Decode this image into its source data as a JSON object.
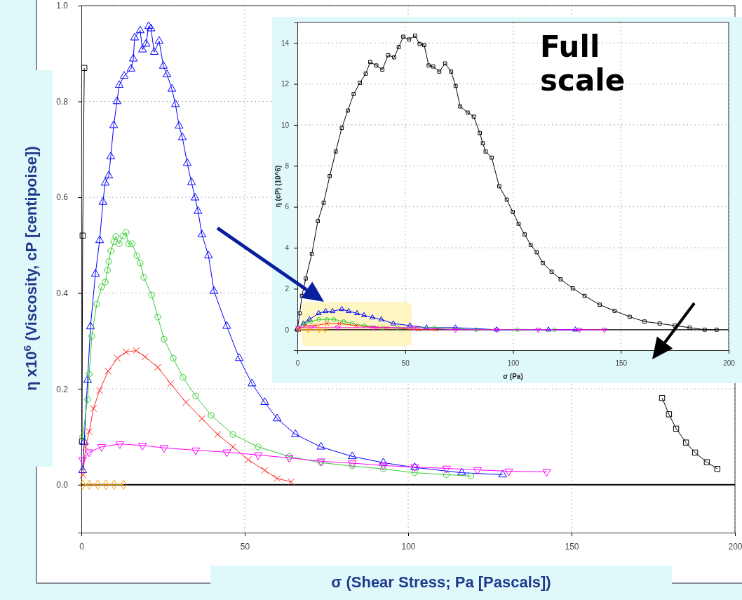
{
  "chart_data": [
    {
      "type": "line",
      "xlabel": "σ (Shear Stress; Pa [Pascals])",
      "ylabel": "η x10$^{6}$ (Viscosity, cP [centipoise])",
      "xlim": [
        0,
        200
      ],
      "ylim": [
        -0.1,
        1.0
      ],
      "xticks": [
        0,
        50,
        100,
        150,
        200
      ],
      "yticks": [
        {
          "value": 0,
          "label": "0.0"
        },
        {
          "value": 0.2,
          "label": "0.2"
        },
        {
          "value": 0.4,
          "label": "0.4"
        },
        {
          "value": 0.6,
          "label": "0.6"
        },
        {
          "value": 0.8,
          "label": "0.8"
        },
        {
          "value": 1,
          "label": "1.0"
        }
      ],
      "grid": true,
      "line_style": "solid",
      "ref_lines": [
        {
          "axis": "y",
          "value": 0,
          "color": "#000000"
        }
      ],
      "series": [
        {
          "color": "#000000",
          "marker": "square",
          "x": [
            0.2,
            0.4,
            0.9,
            2,
            177.7,
            179.8,
            182,
            185,
            187.8,
            191.4,
            194.6
          ],
          "values": [
            0.09,
            0.52,
            0.87,
            null,
            0.181,
            0.147,
            0.117,
            0.088,
            0.067,
            0.047,
            0.033
          ]
        },
        {
          "color": "#0000ff",
          "marker": "triangle",
          "x": [
            0.4,
            0.86,
            1.9,
            2.8,
            4.3,
            5.6,
            6.6,
            7.3,
            8.4,
            9.0,
            9.9,
            10.9,
            11.6,
            13.1,
            15.2,
            15.9,
            16.3,
            18,
            18.7,
            19.8,
            20.6,
            21.3,
            22.3,
            23.8,
            25.1,
            26.2,
            27.7,
            28.8,
            29.9,
            30.9,
            32.4,
            33.7,
            34.8,
            35.7,
            36.9,
            38.9,
            40.6,
            44.5,
            48.3,
            52.2,
            56.1,
            59.9,
            65.5,
            73.3,
            82.9,
            92.4,
            102,
            116.4,
            128.9
          ],
          "values": [
            0.03,
            0.089,
            0.218,
            0.33,
            0.44,
            0.51,
            0.59,
            0.63,
            0.645,
            0.685,
            0.75,
            0.8,
            0.834,
            0.853,
            0.868,
            0.889,
            0.933,
            0.948,
            0.908,
            0.92,
            0.957,
            0.952,
            0.903,
            0.926,
            0.874,
            0.856,
            0.826,
            0.794,
            0.749,
            0.725,
            0.671,
            0.631,
            0.599,
            0.571,
            0.522,
            0.478,
            0.404,
            0.331,
            0.264,
            0.211,
            0.172,
            0.138,
            0.105,
            0.079,
            0.059,
            0.046,
            0.036,
            0.025,
            0.021
          ]
        },
        {
          "color": "#33cc33",
          "marker": "circle",
          "x": [
            0.4,
            1.9,
            2.4,
            3.2,
            4.7,
            6.2,
            7.3,
            8,
            8.4,
            9,
            9.9,
            10.5,
            11.6,
            12.7,
            13.7,
            14.4,
            15.5,
            17,
            18,
            19.1,
            21.5,
            23.4,
            25.3,
            28.1,
            31.1,
            35,
            39.7,
            46.4,
            54.1,
            63.6,
            73.3,
            82.9,
            92.4,
            102,
            111.7,
            119.2
          ],
          "values": [
            0.1,
            0.178,
            0.231,
            0.31,
            0.377,
            0.413,
            0.423,
            0.448,
            0.466,
            0.488,
            0.507,
            0.518,
            0.503,
            0.519,
            0.527,
            0.503,
            0.503,
            0.478,
            0.463,
            0.433,
            0.396,
            0.35,
            0.304,
            0.264,
            0.224,
            0.185,
            0.145,
            0.105,
            0.079,
            0.059,
            0.046,
            0.039,
            0.033,
            0.025,
            0.021,
            0.018
          ]
        },
        {
          "color": "#ff2222",
          "marker": "cross",
          "x": [
            0.5,
            1.3,
            2.4,
            3.7,
            5.6,
            8.2,
            11,
            13.7,
            16.8,
            19.5,
            23.4,
            27.3,
            32,
            36.9,
            41.7,
            46.4,
            51.1,
            56.1,
            59.9,
            64.2
          ],
          "values": [
            0.02,
            0.079,
            0.111,
            0.159,
            0.197,
            0.237,
            0.264,
            0.277,
            0.28,
            0.267,
            0.245,
            0.211,
            0.172,
            0.138,
            0.105,
            0.079,
            0.052,
            0.03,
            0.013,
            0.006
          ]
        },
        {
          "color": "#ff00ff",
          "marker": "triangle-down",
          "x": [
            0.4,
            2.4,
            6.2,
            11.8,
            18.7,
            25.3,
            35,
            44.5,
            54.1,
            63.6,
            73.3,
            82.9,
            92.4,
            102,
            111.7,
            121.2,
            130.8,
            142.4
          ],
          "values": [
            0.052,
            0.068,
            0.079,
            0.085,
            0.082,
            0.077,
            0.072,
            0.068,
            0.062,
            0.056,
            0.049,
            0.045,
            0.04,
            0.037,
            0.034,
            0.031,
            0.028,
            0.027
          ]
        },
        {
          "color": "#ffa500",
          "marker": "diamond",
          "x": [
            0.4,
            2.5,
            5,
            7.5,
            10,
            12.9
          ],
          "values": [
            0,
            0,
            0,
            0,
            0,
            0
          ]
        }
      ]
    },
    {
      "type": "line",
      "xlabel": "σ (Pa)",
      "ylabel": "η (cP) (10^6)",
      "xlim": [
        0,
        200
      ],
      "ylim": [
        -1,
        15
      ],
      "xticks": [
        0,
        50,
        100,
        150,
        200
      ],
      "yticks": [
        0,
        2,
        4,
        6,
        8,
        10,
        12,
        14
      ],
      "grid": true,
      "line_style": "solid",
      "ref_lines": [
        {
          "axis": "y",
          "value": 0,
          "color": "#000000"
        }
      ],
      "annotations": [
        "Full scale"
      ],
      "series": [
        {
          "color": "#000000",
          "marker": "square",
          "x": [
            0,
            1.1,
            2.1,
            3.9,
            6.7,
            9.5,
            12.2,
            15,
            17.8,
            20.6,
            23.4,
            26.1,
            29,
            31.7,
            33.8,
            36.6,
            39.4,
            42.1,
            44.9,
            47,
            49.1,
            51.8,
            54.6,
            56.7,
            58.8,
            60.9,
            63,
            65.8,
            68.5,
            71.3,
            73.4,
            75.5,
            79,
            81.8,
            84.6,
            86,
            87.3,
            90.1,
            93.6,
            97.1,
            99.9,
            102.6,
            105.4,
            108.2,
            111,
            113.8,
            117.9,
            122.1,
            127.7,
            133.2,
            140.2,
            147.1,
            154.1,
            161,
            168,
            175,
            181.9,
            188.9,
            194.4
          ],
          "values": [
            0,
            0.8,
            1.65,
            2.5,
            3.7,
            5.3,
            6.2,
            7.5,
            8.7,
            9.85,
            10.7,
            11.5,
            12.05,
            12.5,
            13.07,
            12.9,
            12.7,
            13.4,
            13.3,
            13.8,
            14.3,
            14.17,
            14.35,
            13.95,
            13.9,
            12.9,
            12.85,
            12.6,
            13.0,
            12.6,
            11.9,
            10.9,
            10.6,
            10.4,
            9.6,
            9.1,
            8.7,
            8.4,
            7.0,
            6.35,
            5.75,
            5.17,
            4.65,
            4.14,
            3.78,
            3.26,
            2.83,
            2.46,
            2.02,
            1.65,
            1.22,
            0.92,
            0.63,
            0.4,
            0.3,
            0.2,
            0.1,
            0,
            0
          ]
        },
        {
          "color": "#0000ff",
          "marker": "triangle",
          "x": [
            0.4,
            2.8,
            5.6,
            9.9,
            13.1,
            16.3,
            20.6,
            23.8,
            27.7,
            30.9,
            34.8,
            38.9,
            44.5,
            52.2,
            59.9,
            73.3,
            92.4,
            116.4,
            128.9
          ],
          "values": [
            0,
            0.3,
            0.5,
            0.8,
            0.9,
            0.9,
            1.0,
            0.9,
            0.8,
            0.7,
            0.6,
            0.5,
            0.3,
            0.2,
            0.1,
            0.1,
            0,
            0,
            0
          ]
        },
        {
          "color": "#33cc33",
          "marker": "circle",
          "x": [
            0.4,
            3.2,
            6.2,
            9.9,
            13.7,
            17,
            21.5,
            25.3,
            31.1,
            39.7,
            46.4,
            54.1,
            63.6,
            82.9,
            102,
            119.2
          ],
          "values": [
            0.1,
            0.3,
            0.4,
            0.5,
            0.5,
            0.5,
            0.4,
            0.3,
            0.2,
            0.1,
            0.1,
            0.1,
            0.1,
            0,
            0,
            0
          ]
        },
        {
          "color": "#ff2222",
          "marker": "cross",
          "x": [
            0.5,
            3.7,
            8.2,
            13.7,
            19.5,
            27.3,
            36.9,
            41.7,
            56.1,
            64.2
          ],
          "values": [
            0,
            0.2,
            0.2,
            0.3,
            0.3,
            0.2,
            0.1,
            0.1,
            0,
            0
          ]
        },
        {
          "color": "#ff00ff",
          "marker": "triangle-down",
          "x": [
            0.4,
            6.2,
            18.7,
            35,
            54.1,
            73.3,
            92.4,
            111.7,
            130.8,
            142.4
          ],
          "values": [
            0.1,
            0.1,
            0.1,
            0.1,
            0.1,
            0,
            0,
            0,
            0,
            0
          ]
        },
        {
          "color": "#ffa500",
          "marker": "diamond",
          "x": [
            0.4,
            5,
            10,
            12.9
          ],
          "values": [
            0,
            0,
            0,
            0
          ]
        }
      ]
    }
  ]
}
